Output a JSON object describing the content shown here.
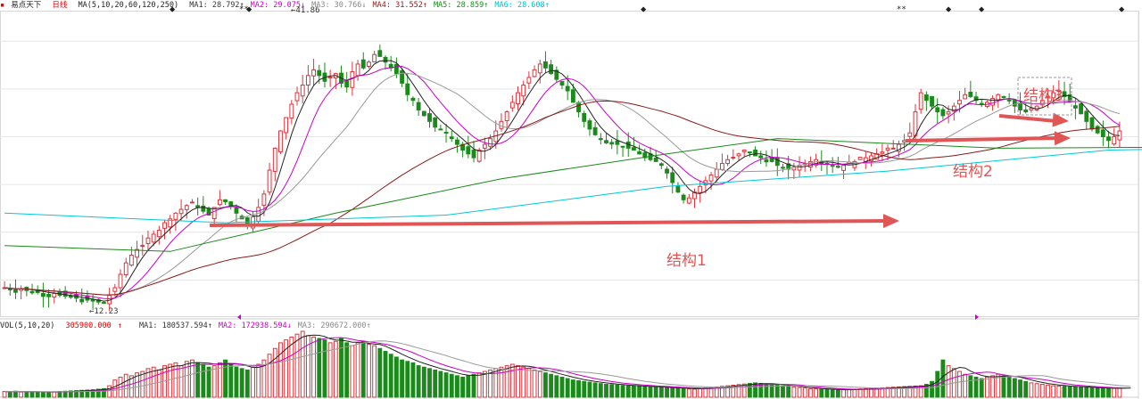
{
  "header": {
    "product": "易点天下",
    "period": "日线",
    "ma_label": "MA(5,10,20,60,120,250)",
    "ma_items": [
      {
        "label": "MA1: 28.792",
        "arrow": "↑",
        "color": "#333333"
      },
      {
        "label": "MA2: 29.075",
        "arrow": "↓",
        "color": "#c800c8"
      },
      {
        "label": "MA3: 30.766",
        "arrow": "↓",
        "color": "#888888"
      },
      {
        "label": "MA4: 31.552",
        "arrow": "↑",
        "color": "#8b1a1a"
      },
      {
        "label": "MA5: 28.859",
        "arrow": "↑",
        "color": "#1a8a1a"
      },
      {
        "label": "MA6: 28.608",
        "arrow": "↑",
        "color": "#00c0d0"
      }
    ]
  },
  "vol_header": {
    "label": "VOL(5,10,20)",
    "value": "305900.000",
    "arrow": "↑",
    "items": [
      {
        "label": "MA1: 180537.594",
        "arrow": "↑",
        "color": "#333333"
      },
      {
        "label": "MA2: 172938.594",
        "arrow": "↓",
        "color": "#c800c8"
      },
      {
        "label": "MA3: 290672.000",
        "arrow": "↑",
        "color": "#888888"
      }
    ]
  },
  "colors": {
    "up": "#d9363e",
    "down": "#1a8a1a",
    "ma5": "#222222",
    "ma10": "#c800c8",
    "ma20": "#999999",
    "ma60": "#8b1a1a",
    "ma120": "#1a8a1a",
    "ma250": "#00c8d8",
    "annotation": "#e05555"
  },
  "chart_data": {
    "type": "candlestick",
    "title": "易点天下 日线",
    "price_range": [
      11.5,
      43.0
    ],
    "high_label": "41.86",
    "low_label": "12.23",
    "gridlines": true,
    "series": [
      {
        "name": "MA5"
      },
      {
        "name": "MA10"
      },
      {
        "name": "MA20"
      },
      {
        "name": "MA60"
      },
      {
        "name": "MA120"
      },
      {
        "name": "MA250"
      }
    ],
    "close": [
      14.2,
      14.1,
      14.0,
      14.1,
      13.9,
      13.8,
      13.7,
      13.6,
      13.5,
      13.6,
      13.4,
      13.3,
      13.2,
      13.1,
      13.0,
      12.9,
      12.8,
      12.7,
      12.6,
      13.4,
      14.2,
      15.6,
      16.8,
      17.6,
      18.2,
      18.6,
      19.4,
      19.8,
      20.2,
      21.0,
      21.4,
      22.0,
      22.4,
      22.8,
      23.1,
      22.6,
      22.2,
      21.8,
      22.6,
      23.4,
      23.2,
      22.8,
      22.0,
      21.4,
      20.8,
      21.6,
      22.6,
      24.0,
      26.5,
      28.8,
      30.6,
      32.0,
      33.4,
      34.6,
      35.4,
      36.4,
      37.0,
      36.4,
      35.8,
      36.2,
      36.6,
      35.6,
      35.2,
      36.8,
      37.6,
      37.2,
      37.8,
      38.6,
      38.4,
      37.8,
      37.2,
      36.6,
      35.6,
      34.4,
      33.8,
      32.8,
      32.2,
      31.6,
      31.0,
      30.8,
      30.4,
      29.8,
      29.2,
      28.6,
      28.2,
      27.8,
      28.6,
      29.2,
      29.8,
      30.6,
      31.6,
      32.6,
      33.6,
      34.6,
      35.4,
      36.2,
      37.0,
      37.6,
      37.2,
      36.6,
      36.0,
      35.4,
      34.8,
      33.6,
      32.6,
      31.6,
      30.8,
      30.2,
      29.8,
      29.6,
      29.4,
      29.2,
      29.0,
      28.8,
      28.6,
      28.2,
      27.8,
      27.6,
      27.4,
      27.0,
      26.2,
      25.2,
      24.2,
      23.4,
      23.6,
      24.2,
      24.8,
      25.4,
      26.0,
      26.6,
      27.2,
      27.6,
      27.8,
      28.2,
      28.6,
      28.4,
      28.0,
      27.8,
      27.6,
      27.4,
      27.0,
      26.8,
      26.6,
      26.8,
      27.0,
      27.2,
      27.4,
      27.6,
      27.4,
      27.2,
      27.0,
      26.8,
      27.0,
      27.2,
      27.4,
      27.6,
      27.8,
      28.0,
      28.2,
      28.4,
      28.6,
      28.8,
      29.2,
      29.6,
      30.4,
      32.6,
      34.6,
      33.8,
      33.2,
      32.6,
      32.2,
      32.6,
      33.2,
      33.8,
      34.4,
      34.2,
      33.8,
      33.4,
      33.6,
      34.0,
      34.4,
      34.2,
      33.8,
      33.2,
      32.8,
      32.6,
      32.8,
      33.2,
      33.8,
      34.2,
      34.6,
      34.8,
      34.2,
      33.6,
      33.0,
      32.4,
      31.6,
      30.8,
      30.4,
      30.0,
      29.6,
      30.0,
      30.6
    ],
    "ma_overlay": {
      "MA250": [
        [
          0,
          22.0
        ],
        [
          40,
          21.0
        ],
        [
          80,
          21.8
        ],
        [
          120,
          24.8
        ],
        [
          160,
          26.4
        ],
        [
          200,
          28.6
        ],
        [
          210,
          28.7
        ]
      ],
      "MA120": [
        [
          0,
          18.6
        ],
        [
          30,
          18.0
        ],
        [
          60,
          22.0
        ],
        [
          90,
          25.6
        ],
        [
          120,
          28.2
        ],
        [
          140,
          29.8
        ],
        [
          180,
          28.8
        ],
        [
          210,
          28.9
        ]
      ]
    },
    "annotations": [
      {
        "text": "结构1"
      },
      {
        "text": "结构2"
      },
      {
        "text": "结构3"
      }
    ],
    "volume": {
      "label": "VOL(5,10,20)",
      "values": [
        40,
        38,
        42,
        36,
        40,
        38,
        35,
        34,
        36,
        38,
        40,
        42,
        44,
        46,
        48,
        50,
        52,
        56,
        60,
        80,
        120,
        140,
        160,
        150,
        170,
        180,
        200,
        210,
        190,
        220,
        230,
        240,
        220,
        250,
        260,
        240,
        230,
        210,
        220,
        240,
        260,
        230,
        210,
        200,
        190,
        210,
        230,
        260,
        300,
        340,
        380,
        400,
        420,
        440,
        460,
        430,
        420,
        410,
        400,
        380,
        390,
        410,
        380,
        360,
        380,
        390,
        370,
        360,
        340,
        320,
        300,
        280,
        260,
        250,
        240,
        220,
        210,
        200,
        190,
        180,
        170,
        160,
        150,
        140,
        150,
        160,
        170,
        180,
        190,
        200,
        210,
        220,
        230,
        220,
        210,
        200,
        190,
        180,
        170,
        160,
        150,
        140,
        130,
        120,
        115,
        110,
        105,
        100,
        95,
        90,
        88,
        85,
        82,
        80,
        78,
        76,
        74,
        72,
        70,
        68,
        66,
        64,
        62,
        60,
        58,
        56,
        60,
        64,
        68,
        72,
        76,
        80,
        84,
        88,
        92,
        96,
        100,
        96,
        92,
        88,
        84,
        80,
        76,
        72,
        68,
        64,
        60,
        58,
        56,
        54,
        52,
        50,
        52,
        54,
        56,
        58,
        60,
        62,
        64,
        66,
        68,
        70,
        72,
        74,
        76,
        78,
        80,
        90,
        110,
        180,
        260,
        220,
        200,
        180,
        160,
        150,
        140,
        130,
        140,
        150,
        160,
        150,
        140,
        130,
        120,
        110,
        100,
        95,
        90,
        85,
        80,
        78,
        76,
        74,
        72,
        70,
        68,
        66,
        64,
        62,
        60,
        62,
        64,
        66,
        68
      ]
    }
  }
}
